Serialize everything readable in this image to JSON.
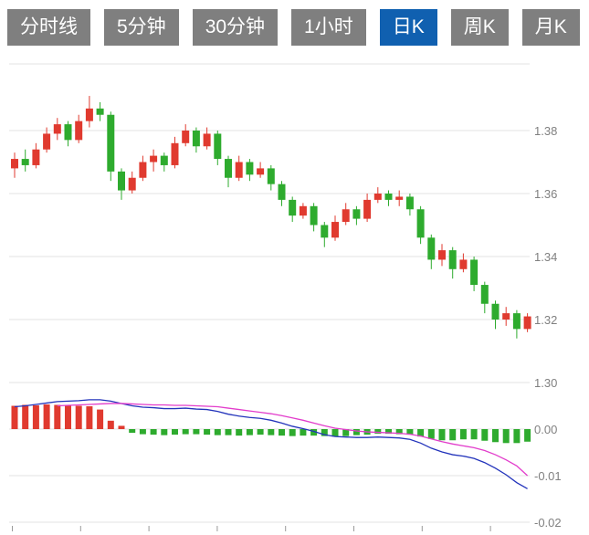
{
  "ui_colors": {
    "tab_bg": "#7f7f7f",
    "tab_active_bg": "#1060b0",
    "tab_text": "#ffffff"
  },
  "toolbar": {
    "tabs": [
      {
        "label": "分时线",
        "active": false
      },
      {
        "label": "5分钟",
        "active": false
      },
      {
        "label": "30分钟",
        "active": false
      },
      {
        "label": "1小时",
        "active": false
      },
      {
        "label": "日K",
        "active": true
      },
      {
        "label": "周K",
        "active": false
      },
      {
        "label": "月K",
        "active": false
      }
    ]
  },
  "chart_data": {
    "type": "candlestick",
    "title": "",
    "grid": true,
    "legend": "none",
    "colors": {
      "up": "#e03a2f",
      "down": "#2eab2e",
      "dif_line": "#2233bb",
      "dea_line": "#e23ccb",
      "grid": "#e3e3e3",
      "axis_text": "#808080",
      "tick": "#9a9a9a"
    },
    "price_axis": {
      "side": "right",
      "range": [
        1.295,
        1.401
      ],
      "ticks": [
        {
          "label": "1.38",
          "value": 1.38
        },
        {
          "label": "1.36",
          "value": 1.36
        },
        {
          "label": "1.34",
          "value": 1.34
        },
        {
          "label": "1.32",
          "value": 1.32
        },
        {
          "label": "1.30",
          "value": 1.3
        }
      ]
    },
    "macd_axis": {
      "side": "right",
      "range": [
        0.007,
        -0.021
      ],
      "ticks": [
        {
          "label": "0.00",
          "value": 0
        },
        {
          "label": "-0.01",
          "value": -0.01
        },
        {
          "label": "-0.02",
          "value": -0.02
        }
      ]
    },
    "x_axis": {
      "tick_count": 8,
      "labels_visible": false
    },
    "candle_format": [
      "open",
      "high",
      "low",
      "close"
    ],
    "candles": [
      [
        1.368,
        1.373,
        1.365,
        1.371
      ],
      [
        1.371,
        1.374,
        1.367,
        1.369
      ],
      [
        1.369,
        1.376,
        1.368,
        1.374
      ],
      [
        1.374,
        1.381,
        1.373,
        1.379
      ],
      [
        1.379,
        1.384,
        1.377,
        1.382
      ],
      [
        1.382,
        1.383,
        1.375,
        1.377
      ],
      [
        1.377,
        1.385,
        1.376,
        1.383
      ],
      [
        1.383,
        1.391,
        1.381,
        1.387
      ],
      [
        1.387,
        1.389,
        1.383,
        1.385
      ],
      [
        1.385,
        1.386,
        1.364,
        1.367
      ],
      [
        1.367,
        1.368,
        1.358,
        1.361
      ],
      [
        1.361,
        1.367,
        1.36,
        1.365
      ],
      [
        1.365,
        1.372,
        1.364,
        1.37
      ],
      [
        1.37,
        1.374,
        1.367,
        1.372
      ],
      [
        1.372,
        1.373,
        1.367,
        1.369
      ],
      [
        1.369,
        1.378,
        1.368,
        1.376
      ],
      [
        1.376,
        1.382,
        1.375,
        1.38
      ],
      [
        1.38,
        1.381,
        1.373,
        1.375
      ],
      [
        1.375,
        1.381,
        1.374,
        1.379
      ],
      [
        1.379,
        1.38,
        1.369,
        1.371
      ],
      [
        1.371,
        1.372,
        1.362,
        1.365
      ],
      [
        1.365,
        1.372,
        1.364,
        1.37
      ],
      [
        1.37,
        1.371,
        1.364,
        1.366
      ],
      [
        1.366,
        1.37,
        1.365,
        1.368
      ],
      [
        1.368,
        1.369,
        1.361,
        1.363
      ],
      [
        1.363,
        1.364,
        1.356,
        1.358
      ],
      [
        1.358,
        1.359,
        1.351,
        1.353
      ],
      [
        1.353,
        1.357,
        1.352,
        1.356
      ],
      [
        1.356,
        1.357,
        1.348,
        1.35
      ],
      [
        1.35,
        1.351,
        1.343,
        1.346
      ],
      [
        1.346,
        1.353,
        1.345,
        1.351
      ],
      [
        1.351,
        1.357,
        1.35,
        1.355
      ],
      [
        1.355,
        1.356,
        1.35,
        1.352
      ],
      [
        1.352,
        1.36,
        1.351,
        1.358
      ],
      [
        1.358,
        1.362,
        1.357,
        1.36
      ],
      [
        1.36,
        1.361,
        1.356,
        1.358
      ],
      [
        1.358,
        1.361,
        1.356,
        1.359
      ],
      [
        1.359,
        1.36,
        1.353,
        1.355
      ],
      [
        1.355,
        1.356,
        1.344,
        1.346
      ],
      [
        1.346,
        1.347,
        1.336,
        1.339
      ],
      [
        1.339,
        1.344,
        1.337,
        1.342
      ],
      [
        1.342,
        1.343,
        1.333,
        1.336
      ],
      [
        1.336,
        1.341,
        1.335,
        1.339
      ],
      [
        1.339,
        1.34,
        1.329,
        1.331
      ],
      [
        1.331,
        1.332,
        1.322,
        1.325
      ],
      [
        1.325,
        1.326,
        1.317,
        1.32
      ],
      [
        1.32,
        1.324,
        1.318,
        1.322
      ],
      [
        1.322,
        1.323,
        1.314,
        1.317
      ],
      [
        1.317,
        1.322,
        1.316,
        1.321
      ]
    ],
    "macd": {
      "histogram": [
        0.005,
        0.0052,
        0.0051,
        0.0053,
        0.0052,
        0.0051,
        0.005,
        0.0049,
        0.0042,
        0.0018,
        0.0007,
        -0.0008,
        -0.0011,
        -0.0012,
        -0.0013,
        -0.0012,
        -0.0011,
        -0.0011,
        -0.0012,
        -0.0013,
        -0.0013,
        -0.0014,
        -0.0013,
        -0.0012,
        -0.0013,
        -0.0014,
        -0.0015,
        -0.0014,
        -0.0014,
        -0.0015,
        -0.0016,
        -0.0015,
        -0.0013,
        -0.0012,
        -0.001,
        -0.001,
        -0.0011,
        -0.0012,
        -0.0016,
        -0.0021,
        -0.0024,
        -0.0024,
        -0.0022,
        -0.0022,
        -0.0025,
        -0.0028,
        -0.003,
        -0.003,
        -0.0027
      ],
      "dif": [
        0.0048,
        0.005,
        0.0053,
        0.0056,
        0.0059,
        0.006,
        0.0061,
        0.0063,
        0.0063,
        0.006,
        0.0055,
        0.005,
        0.0047,
        0.0046,
        0.0044,
        0.0044,
        0.0045,
        0.0043,
        0.0042,
        0.0038,
        0.0032,
        0.0028,
        0.0025,
        0.0023,
        0.0019,
        0.0013,
        0.0006,
        0.0001,
        -0.0005,
        -0.0012,
        -0.0016,
        -0.0017,
        -0.0018,
        -0.0018,
        -0.0017,
        -0.0018,
        -0.0019,
        -0.0022,
        -0.003,
        -0.0041,
        -0.0049,
        -0.0055,
        -0.0058,
        -0.0063,
        -0.0072,
        -0.0084,
        -0.0098,
        -0.0115,
        -0.0128
      ],
      "dea": [
        null,
        null,
        null,
        null,
        0.005,
        0.0051,
        0.0052,
        0.0053,
        0.0054,
        0.0055,
        0.0055,
        0.0054,
        0.0053,
        0.0052,
        0.0052,
        0.0051,
        0.0051,
        0.005,
        0.0049,
        0.0048,
        0.0045,
        0.0042,
        0.0039,
        0.0036,
        0.0033,
        0.0029,
        0.0024,
        0.0019,
        0.0013,
        0.0007,
        0.0002,
        -0.0001,
        -0.0004,
        -0.0006,
        -0.0007,
        -0.0008,
        -0.0009,
        -0.0011,
        -0.0015,
        -0.0021,
        -0.0027,
        -0.0032,
        -0.0036,
        -0.004,
        -0.0046,
        -0.0055,
        -0.0066,
        -0.0079,
        -0.01
      ]
    }
  }
}
